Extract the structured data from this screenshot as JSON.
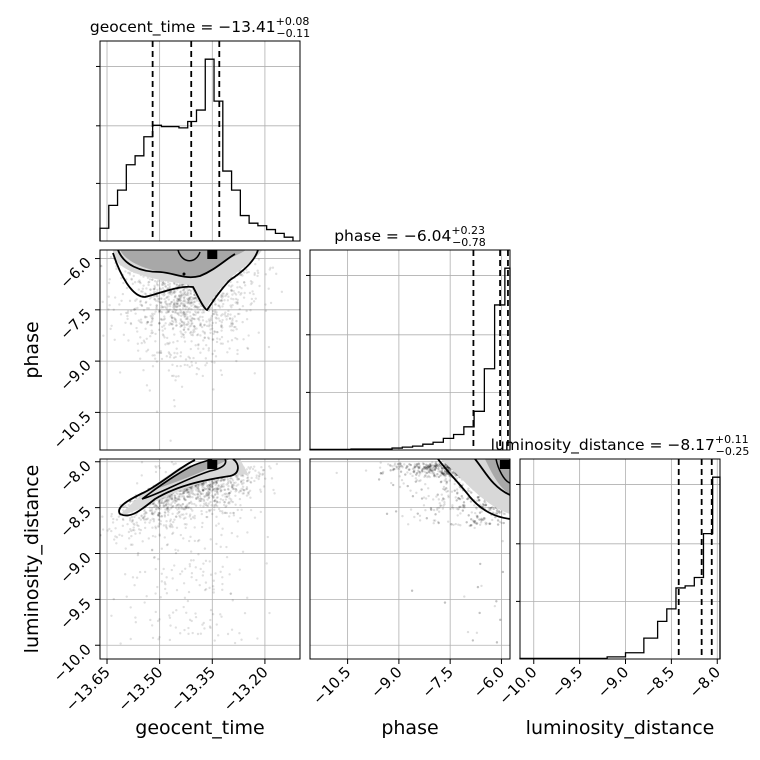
{
  "chart_data": {
    "type": "corner",
    "parameters": [
      "geocent_time",
      "phase",
      "luminosity_distance"
    ],
    "axis_labels": {
      "x": [
        "geocent_time",
        "phase",
        "luminosity_distance"
      ],
      "y": [
        "",
        "phase",
        "luminosity_distance"
      ]
    },
    "ranges": [
      [
        -13.67,
        -13.1
      ],
      [
        -11.6,
        -5.75
      ],
      [
        -10.15,
        -7.97
      ]
    ],
    "ticks": [
      [
        "−13.65",
        "−13.50",
        "−13.35",
        "−13.20"
      ],
      [
        "−10.5",
        "−9.0",
        "−7.5",
        "−6.0"
      ],
      [
        "−10.0",
        "−9.5",
        "−9.0",
        "−8.5",
        "−8.0"
      ]
    ],
    "tick_values": [
      [
        -13.65,
        -13.5,
        -13.35,
        -13.2
      ],
      [
        -10.5,
        -9.0,
        -7.5,
        -6.0
      ],
      [
        -10.0,
        -9.5,
        -9.0,
        -8.5,
        -8.0
      ]
    ],
    "titles": [
      {
        "name": "geocent_time",
        "median": "−13.41",
        "plus": "+0.08",
        "minus": "−0.11"
      },
      {
        "name": "phase",
        "median": "−6.04",
        "plus": "+0.23",
        "minus": "−0.78"
      },
      {
        "name": "luminosity_distance",
        "median": "−8.17",
        "plus": "+0.11",
        "minus": "−0.25"
      }
    ],
    "quantiles": [
      [
        -13.52,
        -13.41,
        -13.33
      ],
      [
        -6.82,
        -6.04,
        -5.81
      ],
      [
        -8.42,
        -8.17,
        -8.06
      ]
    ],
    "truths": {
      "geocent_time": -13.35,
      "phase": -5.9,
      "luminosity_distance": -8.05
    },
    "histograms": [
      {
        "bin_edges": [
          -13.67,
          -13.645,
          -13.62,
          -13.595,
          -13.57,
          -13.545,
          -13.52,
          -13.495,
          -13.47,
          -13.445,
          -13.42,
          -13.395,
          -13.37,
          -13.345,
          -13.32,
          -13.295,
          -13.27,
          -13.245,
          -13.22,
          -13.195,
          -13.17,
          -13.145,
          -13.12
        ],
        "counts": [
          10,
          28,
          40,
          60,
          67,
          82,
          91,
          90,
          90,
          89,
          94,
          103,
          143,
          110,
          55,
          40,
          20,
          14,
          12,
          9,
          6,
          3
        ]
      },
      {
        "bin_edges": [
          -11.6,
          -10.4,
          -9.2,
          -8.9,
          -8.6,
          -8.3,
          -8.0,
          -7.7,
          -7.4,
          -7.1,
          -6.8,
          -6.5,
          -6.2,
          -5.9,
          -5.75
        ],
        "counts": [
          0.3,
          0.5,
          1,
          1.5,
          2,
          3,
          4,
          6,
          8,
          12,
          20,
          42,
          75,
          94
        ]
      },
      {
        "bin_edges": [
          -10.15,
          -9.2,
          -9.0,
          -8.8,
          -8.65,
          -8.55,
          -8.45,
          -8.35,
          -8.25,
          -8.15,
          -8.05,
          -7.97
        ],
        "counts": [
          0.3,
          1,
          3,
          10,
          18,
          24,
          34,
          35,
          39,
          60,
          87
        ]
      }
    ]
  }
}
